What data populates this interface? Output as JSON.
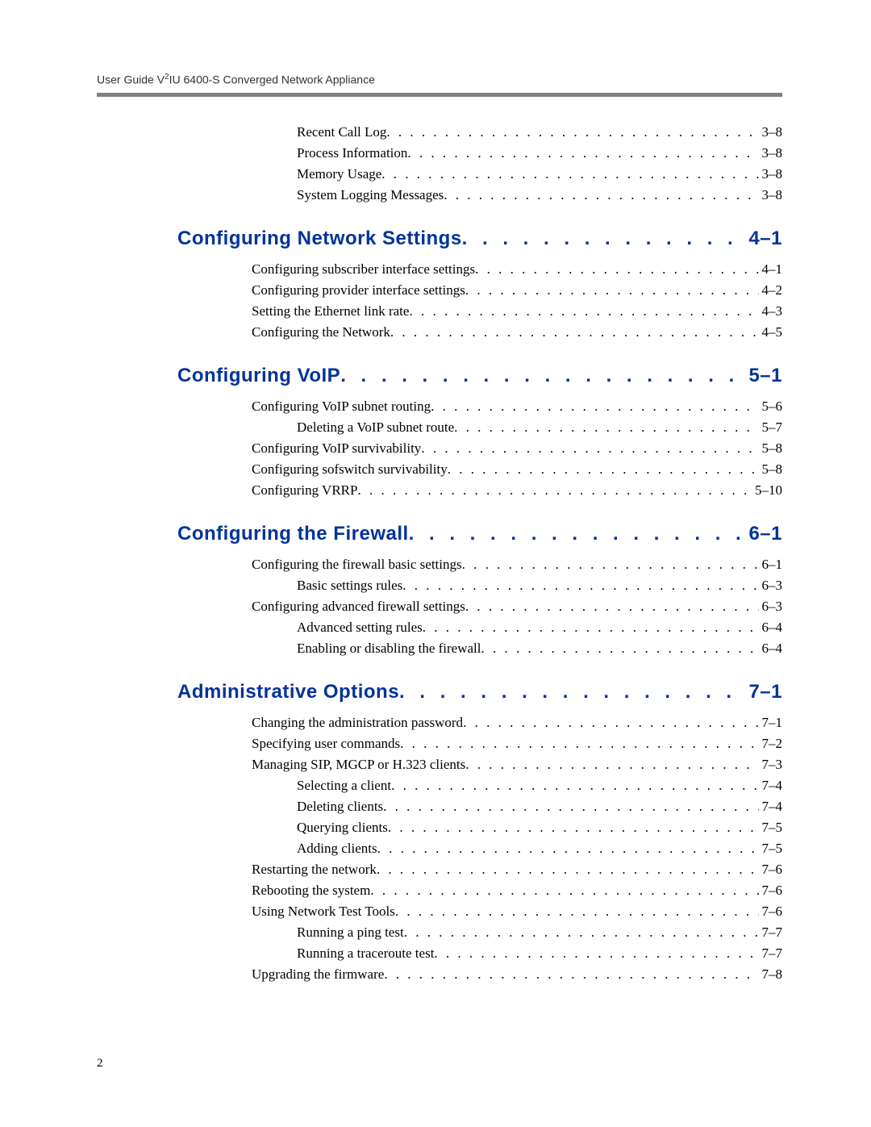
{
  "header": {
    "text_before_sup": "User Guide V",
    "sup": "2",
    "text_after_sup": "IU 6400-S Converged Network Appliance"
  },
  "page_number": "2",
  "colors": {
    "chapter_link": "#003399",
    "hr": "#808080",
    "body_text": "#000000",
    "header_text": "#333333",
    "background": "#ffffff"
  },
  "toc": [
    {
      "type": "lvl2",
      "label": "Recent Call Log",
      "page": "3–8"
    },
    {
      "type": "lvl2",
      "label": "Process Information",
      "page": "3–8"
    },
    {
      "type": "lvl2",
      "label": "Memory Usage",
      "page": "3–8"
    },
    {
      "type": "lvl2",
      "label": "System Logging Messages",
      "page": "3–8"
    },
    {
      "type": "chapter",
      "label": "Configuring Network Settings",
      "page": "4–1"
    },
    {
      "type": "lvl1",
      "label": "Configuring subscriber interface settings",
      "page": "4–1"
    },
    {
      "type": "lvl1",
      "label": "Configuring provider interface settings",
      "page": "4–2"
    },
    {
      "type": "lvl1",
      "label": "Setting the Ethernet link rate",
      "page": "4–3"
    },
    {
      "type": "lvl1",
      "label": "Configuring the Network",
      "page": "4–5"
    },
    {
      "type": "chapter",
      "label": "Configuring VoIP",
      "page": "5–1"
    },
    {
      "type": "lvl1",
      "label": "Configuring VoIP subnet routing",
      "page": "5–6"
    },
    {
      "type": "lvl2",
      "label": "Deleting a VoIP subnet route",
      "page": "5–7"
    },
    {
      "type": "lvl1",
      "label": "Configuring VoIP survivability",
      "page": "5–8"
    },
    {
      "type": "lvl1",
      "label": "Configuring sofswitch survivability",
      "page": "5–8"
    },
    {
      "type": "lvl1",
      "label": "Configuring VRRP",
      "page": "5–10"
    },
    {
      "type": "chapter",
      "label": "Configuring the Firewall",
      "page": "6–1"
    },
    {
      "type": "lvl1",
      "label": "Configuring the firewall basic settings",
      "page": "6–1"
    },
    {
      "type": "lvl2",
      "label": "Basic settings rules",
      "page": "6–3"
    },
    {
      "type": "lvl1",
      "label": "Configuring advanced firewall settings",
      "page": "6–3"
    },
    {
      "type": "lvl2",
      "label": "Advanced setting rules",
      "page": "6–4"
    },
    {
      "type": "lvl2",
      "label": "Enabling or disabling the firewall",
      "page": "6–4"
    },
    {
      "type": "chapter",
      "label": "Administrative Options",
      "page": "7–1"
    },
    {
      "type": "lvl1",
      "label": "Changing the administration password",
      "page": "7–1"
    },
    {
      "type": "lvl1",
      "label": "Specifying user commands",
      "page": "7–2"
    },
    {
      "type": "lvl1",
      "label": "Managing SIP, MGCP or H.323 clients",
      "page": "7–3"
    },
    {
      "type": "lvl2",
      "label": "Selecting a client",
      "page": "7–4"
    },
    {
      "type": "lvl2",
      "label": "Deleting clients",
      "page": "7–4"
    },
    {
      "type": "lvl2",
      "label": "Querying clients",
      "page": "7–5"
    },
    {
      "type": "lvl2",
      "label": "Adding clients",
      "page": "7–5"
    },
    {
      "type": "lvl1",
      "label": "Restarting the network",
      "page": "7–6"
    },
    {
      "type": "lvl1",
      "label": "Rebooting the system",
      "page": "7–6"
    },
    {
      "type": "lvl1",
      "label": "Using Network Test Tools",
      "page": "7–6"
    },
    {
      "type": "lvl2",
      "label": "Running a ping test",
      "page": "7–7"
    },
    {
      "type": "lvl2",
      "label": "Running a traceroute test",
      "page": "7–7"
    },
    {
      "type": "lvl1",
      "label": "Upgrading the firmware",
      "page": "7–8"
    }
  ]
}
